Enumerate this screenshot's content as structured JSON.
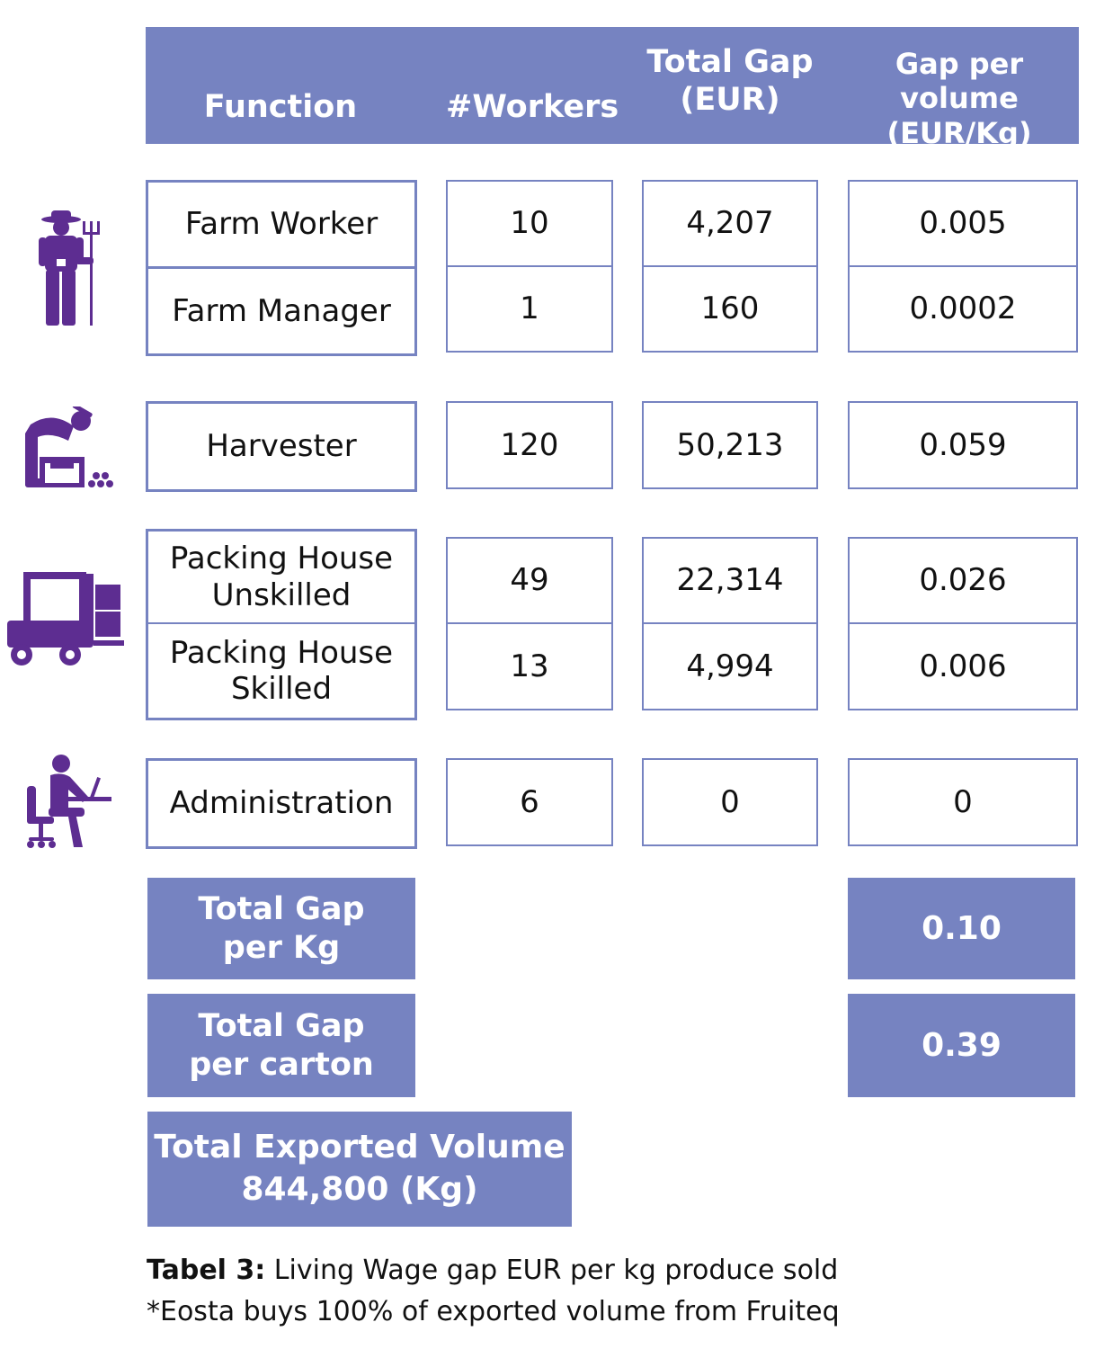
{
  "header": {
    "function": "Function",
    "workers": "#Workers",
    "total_gap": [
      "Total Gap",
      "(EUR)"
    ],
    "gap_per_volume": [
      "Gap per volume",
      "(EUR/Kg)"
    ]
  },
  "rows": [
    {
      "function": "Farm Worker",
      "workers": "10",
      "total_gap": "4,207",
      "gap_per_volume": "0.005"
    },
    {
      "function": "Farm Manager",
      "workers": "1",
      "total_gap": "160",
      "gap_per_volume": "0.0002"
    },
    {
      "function": "Harvester",
      "workers": "120",
      "total_gap": "50,213",
      "gap_per_volume": "0.059"
    },
    {
      "function": [
        "Packing House",
        "Unskilled"
      ],
      "workers": "49",
      "total_gap": "22,314",
      "gap_per_volume": "0.026"
    },
    {
      "function": [
        "Packing House",
        "Skilled"
      ],
      "workers": "13",
      "total_gap": "4,994",
      "gap_per_volume": "0.006"
    },
    {
      "function": "Administration",
      "workers": "6",
      "total_gap": "0",
      "gap_per_volume": "0"
    }
  ],
  "totals": {
    "per_kg": {
      "label": [
        "Total Gap",
        "per Kg"
      ],
      "value": "0.10"
    },
    "per_carton": {
      "label": [
        "Total Gap",
        "per carton"
      ],
      "value": "0.39"
    },
    "exported_volume": [
      "Total Exported Volume",
      "844,800 (Kg)"
    ]
  },
  "caption": {
    "label": "Tabel 3:",
    "text": " Living Wage gap EUR per kg produce sold",
    "note": "*Eosta buys 100% of exported volume from Fruiteq"
  },
  "icons": [
    "farmer-pitchfork-icon",
    "harvester-icon",
    "forklift-icon",
    "office-worker-icon"
  ],
  "colors": {
    "accent": "#7683c1",
    "icon": "#5d2d91"
  }
}
